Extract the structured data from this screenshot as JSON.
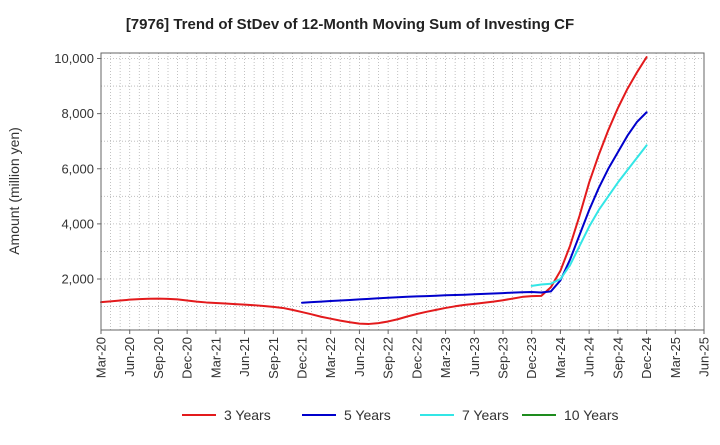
{
  "chart_data": {
    "type": "line",
    "title": "[7976]  Trend of StDev of 12-Month Moving Sum of Investing CF",
    "xlabel": "",
    "ylabel": "Amount (million yen)",
    "x_tick_labels": [
      "Mar-20",
      "Jun-20",
      "Sep-20",
      "Dec-20",
      "Mar-21",
      "Jun-21",
      "Sep-21",
      "Dec-21",
      "Mar-22",
      "Jun-22",
      "Sep-22",
      "Dec-22",
      "Mar-23",
      "Jun-23",
      "Sep-23",
      "Dec-23",
      "Mar-24",
      "Jun-24",
      "Sep-24",
      "Dec-24",
      "Mar-25",
      "Jun-25"
    ],
    "y_ticks": [
      2000,
      4000,
      6000,
      8000,
      10000
    ],
    "y_tick_labels": [
      "2,000",
      "4,000",
      "6,000",
      "8,000",
      "10,000"
    ],
    "ylim": [
      150,
      10200
    ],
    "grid": true,
    "legend_position": "bottom",
    "x_months": [
      "2020-03",
      "2020-04",
      "2020-05",
      "2020-06",
      "2020-07",
      "2020-08",
      "2020-09",
      "2020-10",
      "2020-11",
      "2020-12",
      "2021-01",
      "2021-02",
      "2021-03",
      "2021-04",
      "2021-05",
      "2021-06",
      "2021-07",
      "2021-08",
      "2021-09",
      "2021-10",
      "2021-11",
      "2021-12",
      "2022-01",
      "2022-02",
      "2022-03",
      "2022-04",
      "2022-05",
      "2022-06",
      "2022-07",
      "2022-08",
      "2022-09",
      "2022-10",
      "2022-11",
      "2022-12",
      "2023-01",
      "2023-02",
      "2023-03",
      "2023-04",
      "2023-05",
      "2023-06",
      "2023-07",
      "2023-08",
      "2023-09",
      "2023-10",
      "2023-11",
      "2023-12",
      "2024-01",
      "2024-02",
      "2024-03",
      "2024-04",
      "2024-05",
      "2024-06",
      "2024-07",
      "2024-08",
      "2024-09",
      "2024-10",
      "2024-11",
      "2024-12"
    ],
    "series": [
      {
        "name": "3 Years",
        "color": "#e31a1c",
        "values": [
          1160,
          1190,
          1220,
          1250,
          1270,
          1285,
          1290,
          1280,
          1260,
          1220,
          1180,
          1150,
          1130,
          1110,
          1090,
          1070,
          1050,
          1020,
          990,
          950,
          880,
          800,
          720,
          630,
          560,
          490,
          430,
          380,
          370,
          400,
          460,
          540,
          640,
          730,
          810,
          880,
          950,
          1010,
          1060,
          1100,
          1140,
          1180,
          1230,
          1290,
          1350,
          1380,
          1390,
          1700,
          2300,
          3200,
          4300,
          5500,
          6500,
          7400,
          8200,
          8900,
          9500,
          10050
        ]
      },
      {
        "name": "5 Years",
        "color": "#0000cc",
        "values": [
          null,
          null,
          null,
          null,
          null,
          null,
          null,
          null,
          null,
          null,
          null,
          null,
          null,
          null,
          null,
          null,
          null,
          null,
          null,
          null,
          null,
          1140,
          1160,
          1180,
          1200,
          1220,
          1240,
          1260,
          1280,
          1300,
          1320,
          1340,
          1355,
          1370,
          1380,
          1395,
          1410,
          1420,
          1430,
          1445,
          1460,
          1475,
          1490,
          1505,
          1520,
          1530,
          1510,
          1550,
          1950,
          2700,
          3600,
          4500,
          5300,
          6000,
          6600,
          7200,
          7700,
          8050
        ]
      },
      {
        "name": "7 Years",
        "color": "#33e6e6",
        "values": [
          null,
          null,
          null,
          null,
          null,
          null,
          null,
          null,
          null,
          null,
          null,
          null,
          null,
          null,
          null,
          null,
          null,
          null,
          null,
          null,
          null,
          null,
          null,
          null,
          null,
          null,
          null,
          null,
          null,
          null,
          null,
          null,
          null,
          null,
          null,
          null,
          null,
          null,
          null,
          null,
          null,
          null,
          null,
          null,
          null,
          1750,
          1800,
          1830,
          2000,
          2500,
          3200,
          3900,
          4500,
          5000,
          5500,
          5950,
          6400,
          6850
        ]
      },
      {
        "name": "10 Years",
        "color": "#1e8c1e",
        "values": []
      }
    ]
  }
}
